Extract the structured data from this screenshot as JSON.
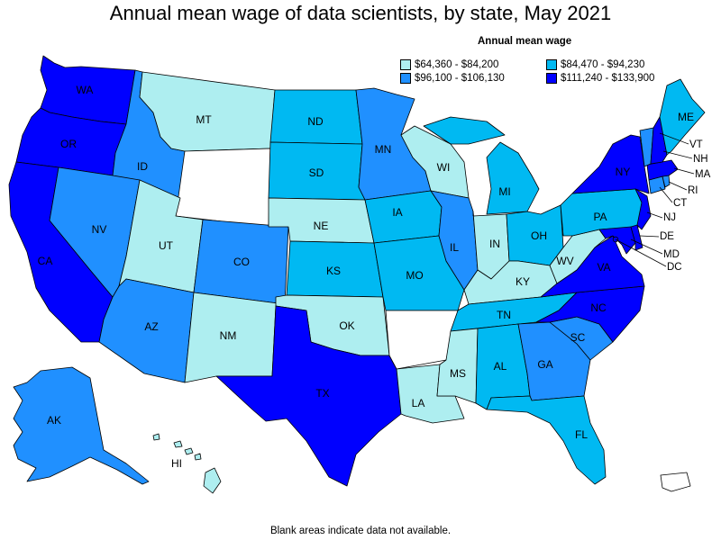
{
  "title": "Annual mean wage of data scientists, by state, May 2021",
  "legend": {
    "title": "Annual mean wage",
    "items": [
      {
        "label": "$64,360 - $84,200",
        "color": "#aeeef0"
      },
      {
        "label": "$84,470 - $94,230",
        "color": "#00b9f2"
      },
      {
        "label": "$96,100 - $106,130",
        "color": "#2090ff"
      },
      {
        "label": "$111,240 - $133,900",
        "color": "#0000ff"
      }
    ]
  },
  "footnote": "Blank areas indicate data not available.",
  "states": {
    "WA": {
      "label": "WA",
      "tier": 3
    },
    "OR": {
      "label": "OR",
      "tier": 3
    },
    "CA": {
      "label": "CA",
      "tier": 3
    },
    "ID": {
      "label": "ID",
      "tier": 2
    },
    "NV": {
      "label": "NV",
      "tier": 2
    },
    "MT": {
      "label": "MT",
      "tier": 0
    },
    "WY": {
      "label": "",
      "tier": -1
    },
    "UT": {
      "label": "UT",
      "tier": 0
    },
    "AZ": {
      "label": "AZ",
      "tier": 2
    },
    "CO": {
      "label": "CO",
      "tier": 2
    },
    "NM": {
      "label": "NM",
      "tier": 0
    },
    "ND": {
      "label": "ND",
      "tier": 1
    },
    "SD": {
      "label": "SD",
      "tier": 1
    },
    "NE": {
      "label": "NE",
      "tier": 0
    },
    "KS": {
      "label": "KS",
      "tier": 1
    },
    "OK": {
      "label": "OK",
      "tier": 0
    },
    "TX": {
      "label": "TX",
      "tier": 3
    },
    "MN": {
      "label": "MN",
      "tier": 2
    },
    "IA": {
      "label": "IA",
      "tier": 1
    },
    "MO": {
      "label": "MO",
      "tier": 1
    },
    "AR": {
      "label": "",
      "tier": -1
    },
    "LA": {
      "label": "LA",
      "tier": 0
    },
    "WI": {
      "label": "WI",
      "tier": 0
    },
    "IL": {
      "label": "IL",
      "tier": 2
    },
    "MI": {
      "label": "MI",
      "tier": 1
    },
    "IN": {
      "label": "IN",
      "tier": 0
    },
    "OH": {
      "label": "OH",
      "tier": 1
    },
    "KY": {
      "label": "KY",
      "tier": 0
    },
    "TN": {
      "label": "TN",
      "tier": 1
    },
    "MS": {
      "label": "MS",
      "tier": 0
    },
    "AL": {
      "label": "AL",
      "tier": 1
    },
    "GA": {
      "label": "GA",
      "tier": 2
    },
    "FL": {
      "label": "FL",
      "tier": 1
    },
    "SC": {
      "label": "SC",
      "tier": 2
    },
    "NC": {
      "label": "NC",
      "tier": 3
    },
    "VA": {
      "label": "VA",
      "tier": 3
    },
    "WV": {
      "label": "WV",
      "tier": 0
    },
    "PA": {
      "label": "PA",
      "tier": 1
    },
    "NY": {
      "label": "NY",
      "tier": 3
    },
    "ME": {
      "label": "ME",
      "tier": 1
    },
    "VT": {
      "label": "VT",
      "tier": 2
    },
    "NH": {
      "label": "NH",
      "tier": 3
    },
    "MA": {
      "label": "MA",
      "tier": 3
    },
    "RI": {
      "label": "RI",
      "tier": 2
    },
    "CT": {
      "label": "CT",
      "tier": 2
    },
    "NJ": {
      "label": "NJ",
      "tier": 3
    },
    "DE": {
      "label": "DE",
      "tier": 3
    },
    "MD": {
      "label": "MD",
      "tier": 3
    },
    "DC": {
      "label": "DC",
      "tier": 3
    },
    "AK": {
      "label": "AK",
      "tier": 2
    },
    "HI": {
      "label": "HI",
      "tier": 0
    },
    "PR": {
      "label": "",
      "tier": -1
    }
  }
}
